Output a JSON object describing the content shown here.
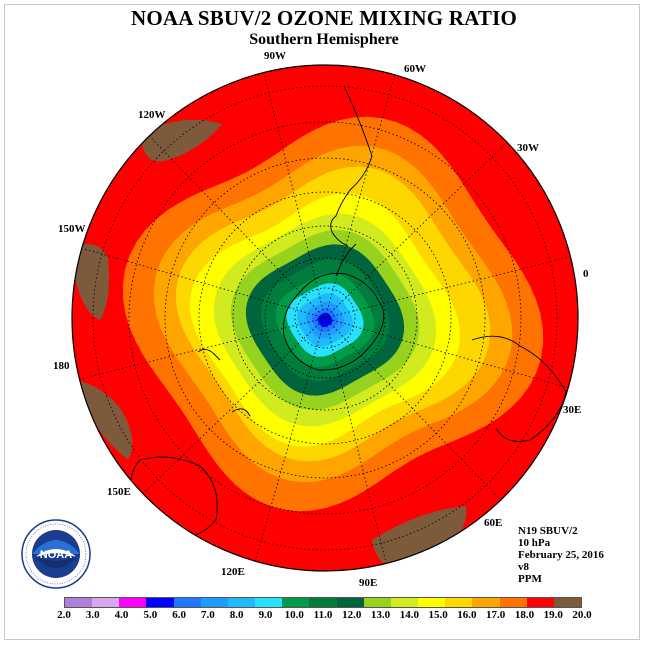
{
  "title": "NOAA SBUV/2 OZONE MIXING RATIO",
  "subtitle": "Southern Hemisphere",
  "info": {
    "satellite": "N19 SBUV/2",
    "pressure": "10 hPa",
    "date": "February 25, 2016",
    "version": "v8",
    "units": "PPM"
  },
  "longitude_labels": [
    "90W",
    "60W",
    "30W",
    "0",
    "30E",
    "60E",
    "90E",
    "120E",
    "150E",
    "180",
    "150W",
    "120W"
  ],
  "colorbar": {
    "ticks": [
      "2.0",
      "3.0",
      "4.0",
      "5.0",
      "6.0",
      "7.0",
      "8.0",
      "9.0",
      "10.0",
      "11.0",
      "12.0",
      "13.0",
      "14.0",
      "15.0",
      "16.0",
      "17.0",
      "18.0",
      "19.0",
      "20.0"
    ],
    "colors": [
      "#b07fd6",
      "#d9a8ec",
      "#ff00ff",
      "#0000ff",
      "#1e78ff",
      "#1e9bff",
      "#1eb9ff",
      "#28e1ff",
      "#009b46",
      "#007d3c",
      "#00643c",
      "#96d21e",
      "#d2eb1e",
      "#ffff00",
      "#ffd700",
      "#ffa500",
      "#ff7300",
      "#ff0000",
      "#7d5a3c"
    ]
  },
  "ozone_levels": [
    {
      "ppm": 20.0,
      "color": "#7d5a3c"
    },
    {
      "ppm": 19.0,
      "color": "#ff0000"
    },
    {
      "ppm": 18.0,
      "color": "#ff7300"
    },
    {
      "ppm": 17.0,
      "color": "#ffa500"
    },
    {
      "ppm": 16.0,
      "color": "#ffd700"
    },
    {
      "ppm": 15.0,
      "color": "#ffff00"
    },
    {
      "ppm": 14.0,
      "color": "#d2eb1e"
    },
    {
      "ppm": 13.0,
      "color": "#96d21e"
    },
    {
      "ppm": 12.0,
      "color": "#00643c"
    },
    {
      "ppm": 11.0,
      "color": "#007d3c"
    },
    {
      "ppm": 10.0,
      "color": "#009b46"
    },
    {
      "ppm": 9.0,
      "color": "#28e1ff"
    },
    {
      "ppm": 8.0,
      "color": "#1eb9ff"
    },
    {
      "ppm": 7.0,
      "color": "#1e9bff"
    },
    {
      "ppm": 6.0,
      "color": "#1e78ff"
    },
    {
      "ppm": 5.0,
      "color": "#0000ff"
    }
  ],
  "logo": {
    "text": "NOAA",
    "ring_text": "NATIONAL OCEANIC AND ATMOSPHERIC ADMINISTRATION · U.S. DEPARTMENT OF COMMERCE"
  }
}
